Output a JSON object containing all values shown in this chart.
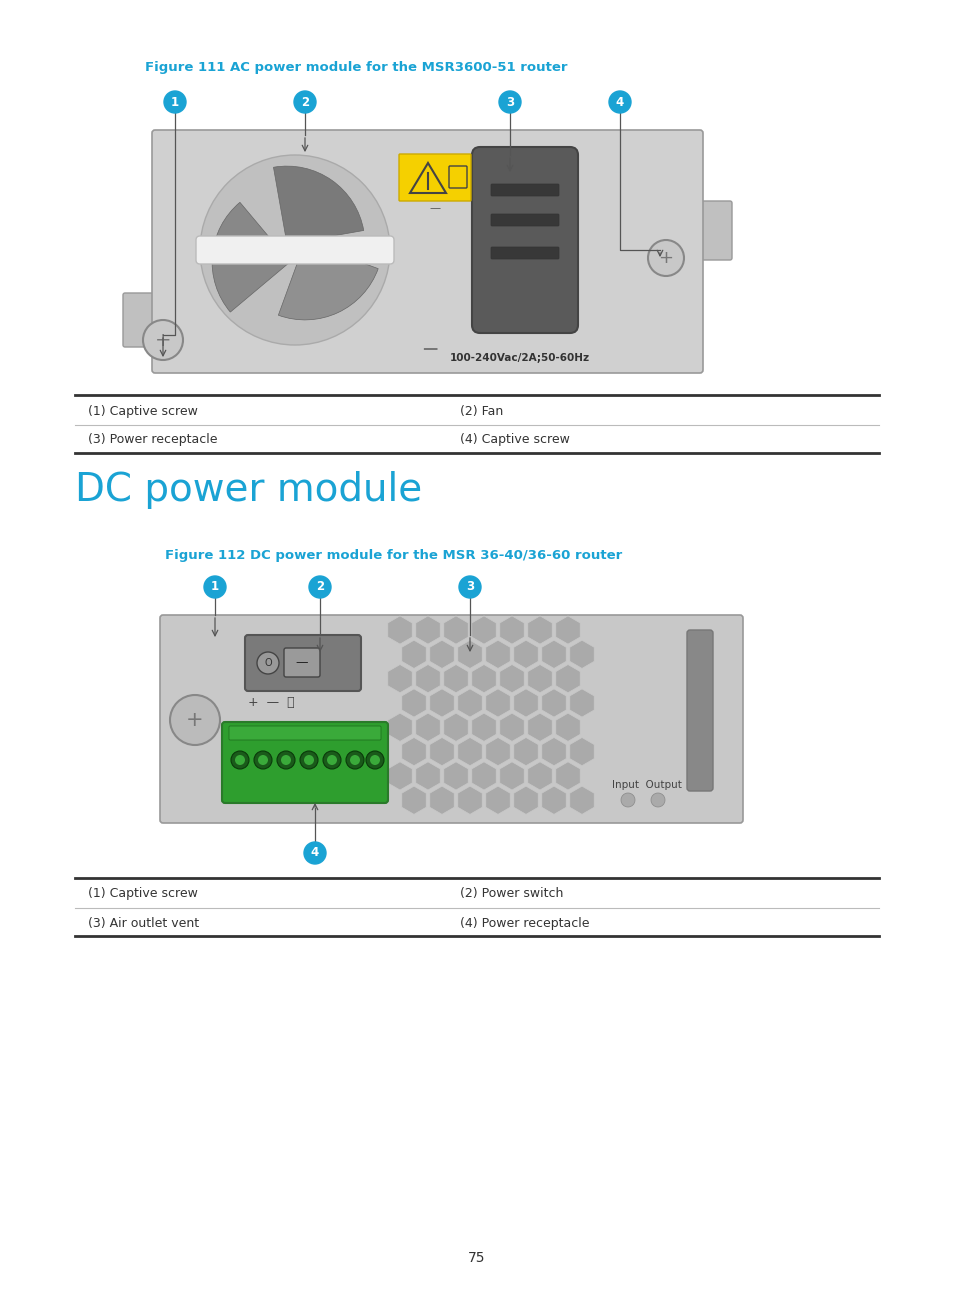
{
  "page_number": "75",
  "fig111_title": "Figure 111 AC power module for the MSR3600-51 router",
  "fig112_title": "Figure 112 DC power module for the MSR 36-40/36-60 router",
  "section_title": "DC power module",
  "table1_rows": [
    [
      "(1) Captive screw",
      "(2) Fan"
    ],
    [
      "(3) Power receptacle",
      "(4) Captive screw"
    ]
  ],
  "table2_rows": [
    [
      "(1) Captive screw",
      "(2) Power switch"
    ],
    [
      "(3) Air outlet vent",
      "(4) Power receptacle"
    ]
  ],
  "cyan_color": "#1AA3D4",
  "bg_color": "#FFFFFF",
  "text_color": "#333333",
  "gray_box": "#C8C8C8",
  "gray_med": "#A0A0A0",
  "gray_dark": "#707070",
  "green_color": "#3EAA3E",
  "yellow_color": "#F5D000"
}
